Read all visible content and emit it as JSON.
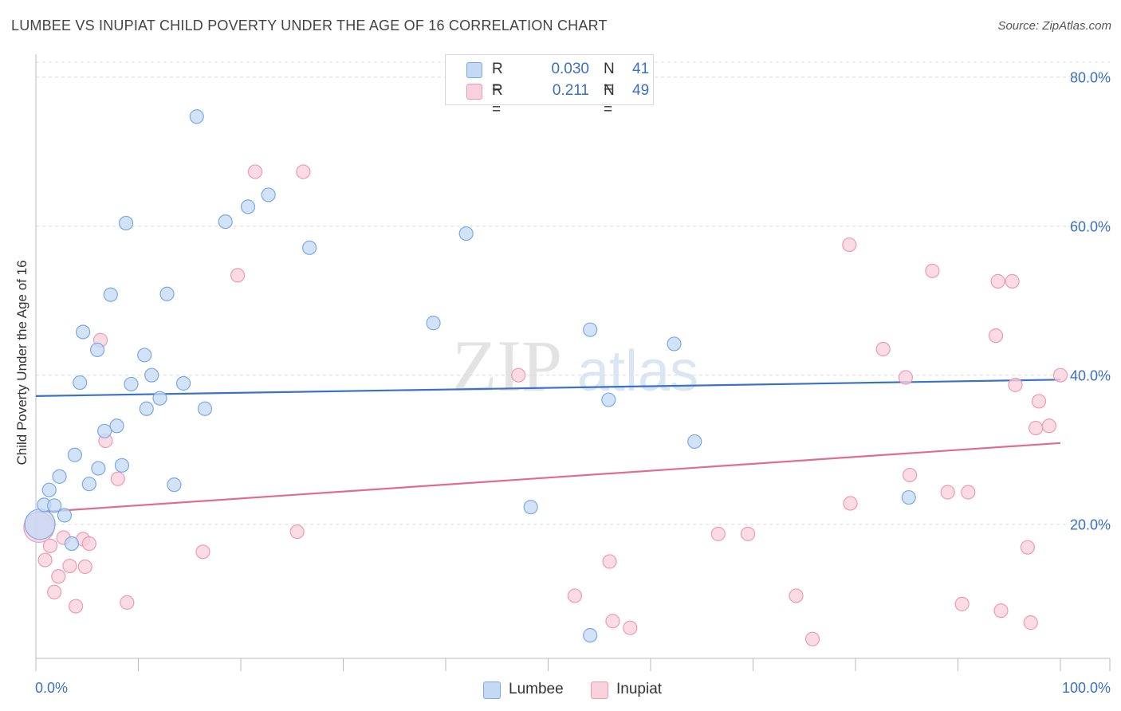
{
  "title": "LUMBEE VS INUPIAT CHILD POVERTY UNDER THE AGE OF 16 CORRELATION CHART",
  "source": "Source: ZipAtlas.com",
  "watermark": {
    "zip": "ZIP",
    "atlas": "atlas"
  },
  "colors": {
    "lumbee_fill": "#c3d9f5",
    "lumbee_stroke": "#7aaae3",
    "lumbee_line": "#3a72c8",
    "inupiat_fill": "#f9d0dc",
    "inupiat_stroke": "#ee9ab4",
    "inupiat_line": "#e06c96",
    "tick_label": "#3a70c4"
  },
  "legend": {
    "lumbee": {
      "r_label": "R =",
      "r_value": "0.030",
      "n_label": "N =",
      "n_value": "41"
    },
    "inupiat": {
      "r_label": "R =",
      "r_value": "0.211",
      "n_label": "N =",
      "n_value": "49"
    }
  },
  "bottom_legend": {
    "lumbee": "Lumbee",
    "inupiat": "Inupiat"
  },
  "chart_data": {
    "type": "scatter",
    "title": "LUMBEE VS INUPIAT CHILD POVERTY UNDER THE AGE OF 16 CORRELATION CHART",
    "xlabel": "",
    "ylabel": "Child Poverty Under the Age of 16",
    "xlim": [
      0,
      100
    ],
    "ylim": [
      2,
      82
    ],
    "x_tick_labels": [
      {
        "value": 0,
        "label": "0.0%"
      },
      {
        "value": 100,
        "label": "100.0%"
      }
    ],
    "y_ticks": [
      {
        "value": 20,
        "label": "20.0%"
      },
      {
        "value": 40,
        "label": "40.0%"
      },
      {
        "value": 60,
        "label": "60.0%"
      },
      {
        "value": 80,
        "label": "80.0%"
      }
    ],
    "x_minor_ticks": [
      0,
      10,
      20,
      30,
      40,
      50,
      60,
      70,
      80,
      90,
      100
    ],
    "grid": true,
    "series": [
      {
        "name": "Lumbee",
        "trend": {
          "x": [
            0,
            100
          ],
          "y": [
            37.2,
            39.4
          ]
        },
        "points": [
          {
            "x": 0.4,
            "y": 20.0,
            "big": true
          },
          {
            "x": 0.8,
            "y": 22.6
          },
          {
            "x": 1.3,
            "y": 24.6
          },
          {
            "x": 1.8,
            "y": 22.5
          },
          {
            "x": 2.3,
            "y": 26.4
          },
          {
            "x": 2.8,
            "y": 21.2
          },
          {
            "x": 3.5,
            "y": 17.4
          },
          {
            "x": 3.8,
            "y": 29.3
          },
          {
            "x": 4.3,
            "y": 39.0
          },
          {
            "x": 4.6,
            "y": 45.8
          },
          {
            "x": 5.2,
            "y": 25.4
          },
          {
            "x": 6.1,
            "y": 27.5
          },
          {
            "x": 6.0,
            "y": 43.4
          },
          {
            "x": 6.7,
            "y": 32.5
          },
          {
            "x": 7.3,
            "y": 50.8
          },
          {
            "x": 7.9,
            "y": 33.2
          },
          {
            "x": 8.4,
            "y": 27.9
          },
          {
            "x": 8.8,
            "y": 60.4
          },
          {
            "x": 9.3,
            "y": 38.8
          },
          {
            "x": 10.6,
            "y": 42.7
          },
          {
            "x": 10.8,
            "y": 35.5
          },
          {
            "x": 11.3,
            "y": 40.0
          },
          {
            "x": 12.1,
            "y": 36.9
          },
          {
            "x": 12.8,
            "y": 50.9
          },
          {
            "x": 13.5,
            "y": 25.3
          },
          {
            "x": 14.4,
            "y": 38.9
          },
          {
            "x": 15.7,
            "y": 74.7
          },
          {
            "x": 16.5,
            "y": 35.5
          },
          {
            "x": 18.5,
            "y": 60.6
          },
          {
            "x": 20.7,
            "y": 62.6
          },
          {
            "x": 22.7,
            "y": 64.2
          },
          {
            "x": 26.7,
            "y": 57.1
          },
          {
            "x": 38.8,
            "y": 47.0
          },
          {
            "x": 42.0,
            "y": 59.0
          },
          {
            "x": 48.3,
            "y": 22.3
          },
          {
            "x": 54.1,
            "y": 46.1
          },
          {
            "x": 54.1,
            "y": 5.1
          },
          {
            "x": 55.9,
            "y": 36.7
          },
          {
            "x": 62.3,
            "y": 44.2
          },
          {
            "x": 64.3,
            "y": 31.1
          },
          {
            "x": 85.2,
            "y": 23.6
          }
        ]
      },
      {
        "name": "Inupiat",
        "trend": {
          "x": [
            0,
            100
          ],
          "y": [
            21.6,
            30.9
          ]
        },
        "points": [
          {
            "x": 0.3,
            "y": 19.6,
            "big": true
          },
          {
            "x": 0.9,
            "y": 15.2
          },
          {
            "x": 1.4,
            "y": 17.1
          },
          {
            "x": 1.8,
            "y": 10.9
          },
          {
            "x": 2.2,
            "y": 13.0
          },
          {
            "x": 2.7,
            "y": 18.2
          },
          {
            "x": 3.3,
            "y": 14.4
          },
          {
            "x": 3.9,
            "y": 9.0
          },
          {
            "x": 4.6,
            "y": 18.0
          },
          {
            "x": 4.8,
            "y": 14.3
          },
          {
            "x": 5.2,
            "y": 17.4
          },
          {
            "x": 6.3,
            "y": 44.7
          },
          {
            "x": 6.8,
            "y": 31.2
          },
          {
            "x": 8.0,
            "y": 26.1
          },
          {
            "x": 8.9,
            "y": 9.5
          },
          {
            "x": 16.3,
            "y": 16.3
          },
          {
            "x": 19.7,
            "y": 53.4
          },
          {
            "x": 21.4,
            "y": 67.3
          },
          {
            "x": 25.5,
            "y": 19.0
          },
          {
            "x": 26.1,
            "y": 67.3
          },
          {
            "x": 47.1,
            "y": 40.0
          },
          {
            "x": 52.6,
            "y": 10.4
          },
          {
            "x": 56.0,
            "y": 15.0
          },
          {
            "x": 56.3,
            "y": 7.0
          },
          {
            "x": 58.0,
            "y": 6.1
          },
          {
            "x": 66.6,
            "y": 18.7
          },
          {
            "x": 69.5,
            "y": 18.7
          },
          {
            "x": 74.2,
            "y": 10.4
          },
          {
            "x": 75.8,
            "y": 4.6
          },
          {
            "x": 79.4,
            "y": 57.5
          },
          {
            "x": 79.5,
            "y": 22.8
          },
          {
            "x": 82.7,
            "y": 43.5
          },
          {
            "x": 84.9,
            "y": 39.7
          },
          {
            "x": 85.3,
            "y": 26.6
          },
          {
            "x": 87.5,
            "y": 54.0
          },
          {
            "x": 89.0,
            "y": 24.3
          },
          {
            "x": 90.4,
            "y": 9.3
          },
          {
            "x": 91.0,
            "y": 24.3
          },
          {
            "x": 93.7,
            "y": 45.3
          },
          {
            "x": 93.9,
            "y": 52.6
          },
          {
            "x": 94.2,
            "y": 8.4
          },
          {
            "x": 95.3,
            "y": 52.6
          },
          {
            "x": 95.6,
            "y": 38.7
          },
          {
            "x": 96.8,
            "y": 16.9
          },
          {
            "x": 97.1,
            "y": 6.8
          },
          {
            "x": 97.6,
            "y": 32.9
          },
          {
            "x": 97.9,
            "y": 36.5
          },
          {
            "x": 98.9,
            "y": 33.2
          },
          {
            "x": 100.0,
            "y": 40.0
          }
        ]
      }
    ]
  }
}
